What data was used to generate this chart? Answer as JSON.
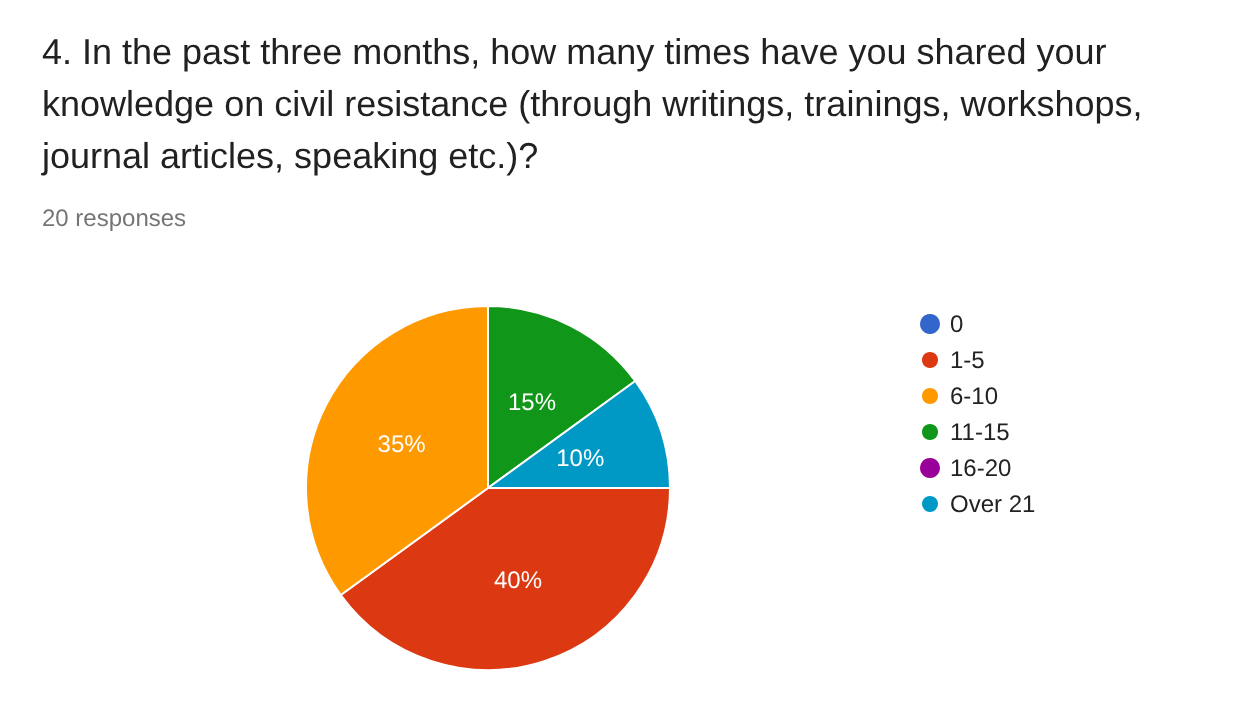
{
  "chart_data": {
    "type": "pie",
    "title": "4. In the past three months, how many times have you shared your knowledge on civil resistance (through writings, trainings, workshops, journal articles, speaking etc.)?",
    "subtitle": "20 responses",
    "categories": [
      "0",
      "1-5",
      "6-10",
      "11-15",
      "16-20",
      "Over 21"
    ],
    "values": [
      0,
      40,
      35,
      15,
      0,
      10
    ],
    "colors": [
      "#3366cc",
      "#dc3912",
      "#ff9900",
      "#109618",
      "#990099",
      "#0099c6"
    ],
    "value_labels": [
      null,
      "40%",
      "35%",
      "15%",
      null,
      "10%"
    ],
    "legend": "right"
  }
}
